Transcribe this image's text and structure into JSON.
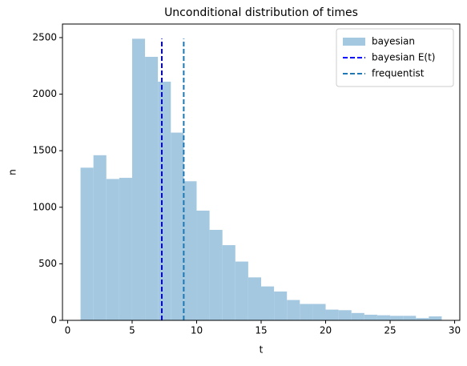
{
  "chart_data": {
    "type": "histogram",
    "title": "Unconditional distribution of times",
    "x_label": "t",
    "y_label": "n",
    "bins": [
      1,
      2,
      3,
      4,
      5,
      6,
      7,
      8,
      9,
      10,
      11,
      12,
      13,
      14,
      15,
      16,
      17,
      18,
      19,
      20,
      21,
      22,
      23,
      24,
      25,
      26,
      27,
      28,
      29
    ],
    "series": [
      {
        "name": "bayesian",
        "color": "#a5c8e1",
        "values": [
          1350,
          1460,
          1250,
          1260,
          2490,
          2330,
          2110,
          1660,
          1230,
          970,
          800,
          665,
          520,
          380,
          300,
          255,
          180,
          145,
          145,
          95,
          90,
          65,
          50,
          45,
          40,
          40,
          20,
          35
        ]
      }
    ],
    "vlines": [
      {
        "name": "bayesian E(t)",
        "color": "#0000ff",
        "x": 7.3
      },
      {
        "name": "frequentist",
        "color": "#1f77b4",
        "x": 9.0
      }
    ],
    "xlim": [
      -0.4,
      30.4
    ],
    "ylim": [
      0,
      2620
    ],
    "xticks": [
      0,
      5,
      10,
      15,
      20,
      25,
      30
    ],
    "yticks": [
      0,
      500,
      1000,
      1500,
      2000,
      2500
    ],
    "legend": "upper right"
  }
}
